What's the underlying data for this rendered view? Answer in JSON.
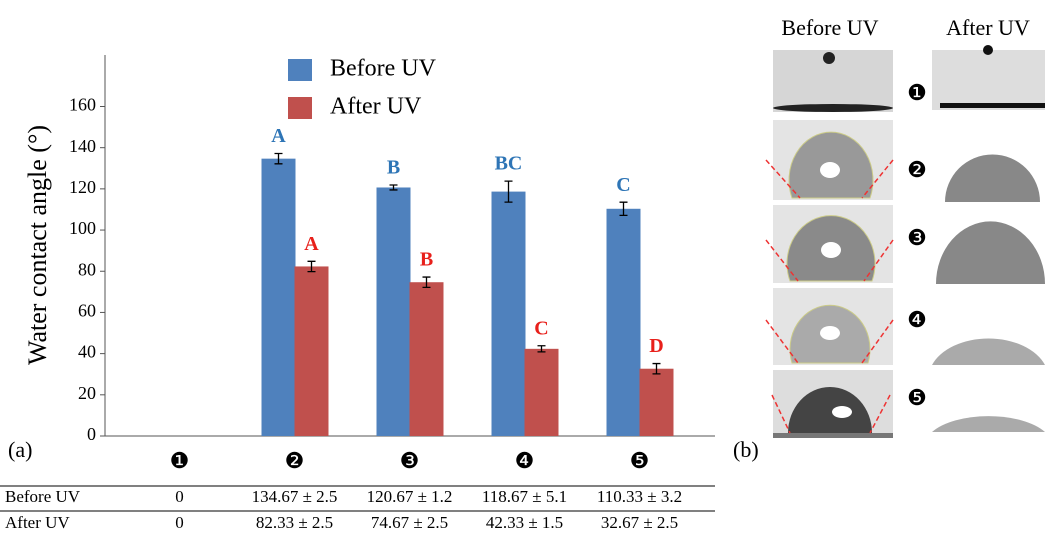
{
  "chart_data": {
    "type": "bar",
    "y_label": "Water contact angle (°)",
    "panel_label": "(a)",
    "categories": [
      "❶",
      "❷",
      "❸",
      "❹",
      "❺"
    ],
    "series": [
      {
        "name": "Before UV",
        "color": "#4f81bd",
        "letter_color": "#2e75b6",
        "values": [
          0,
          134.67,
          120.67,
          118.67,
          110.33
        ],
        "errors": [
          null,
          2.5,
          1.2,
          5.1,
          3.2
        ],
        "letters": [
          null,
          "A",
          "B",
          "BC",
          "C"
        ]
      },
      {
        "name": "After UV",
        "color": "#c0504d",
        "letter_color": "#e8201b",
        "values": [
          0,
          82.33,
          74.67,
          42.33,
          32.67
        ],
        "errors": [
          null,
          2.5,
          2.5,
          1.5,
          2.5
        ],
        "letters": [
          null,
          "A",
          "B",
          "C",
          "D"
        ]
      }
    ],
    "ylim": [
      0,
      185
    ],
    "yticks": [
      0,
      20,
      40,
      60,
      80,
      100,
      120,
      140,
      160
    ]
  },
  "table": {
    "rows": [
      [
        "Before UV",
        "0",
        "134.67 ± 2.5",
        "120.67 ± 1.2",
        "118.67 ± 5.1",
        "110.33 ± 3.2"
      ],
      [
        "After UV",
        "0",
        "82.33 ± 2.5",
        "74.67 ± 2.5",
        "42.33 ± 1.5",
        "32.67 ± 2.5"
      ]
    ]
  },
  "images": {
    "panel_label": "(b)",
    "columns": [
      "Before UV",
      "After UV"
    ],
    "row_labels": [
      "❶",
      "❷",
      "❸",
      "❹",
      "❺"
    ]
  }
}
